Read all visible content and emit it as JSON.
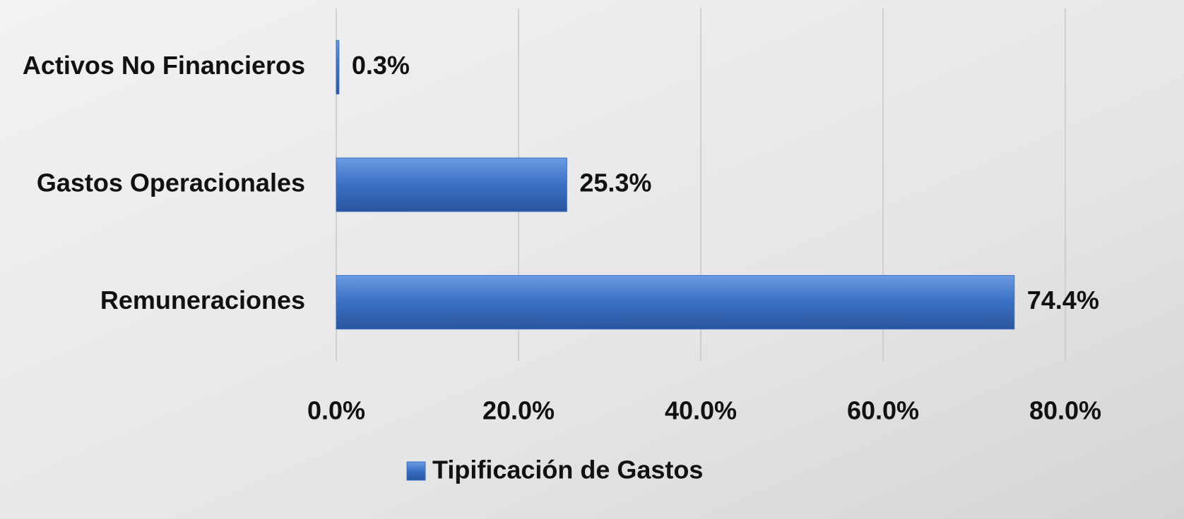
{
  "chart_data": {
    "type": "hbar",
    "categories": [
      "Activos No Financieros",
      "Gastos Operacionales",
      "Remuneraciones"
    ],
    "series": [
      {
        "name": "Tipificación de Gastos",
        "color": "#3a6fc4",
        "values": [
          0.3,
          25.3,
          74.4
        ],
        "value_labels": [
          "0.3%",
          "25.3%",
          "74.4%"
        ]
      }
    ],
    "xlim": [
      0,
      80
    ],
    "xticks": [
      {
        "value": 0,
        "label": "0.0%"
      },
      {
        "value": 20,
        "label": "20.0%"
      },
      {
        "value": 40,
        "label": "40.0%"
      },
      {
        "value": 60,
        "label": "60.0%"
      },
      {
        "value": 80,
        "label": "80.0%"
      }
    ],
    "grid": true,
    "legend": "bottom"
  }
}
